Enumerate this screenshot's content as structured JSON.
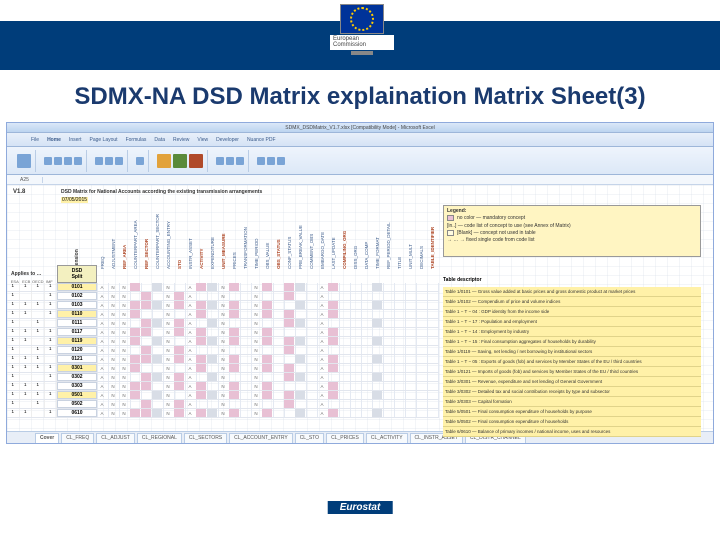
{
  "header": {
    "logo_text": "European\nCommission"
  },
  "title": "SDMX-NA DSD Matrix explaination Matrix Sheet(3)",
  "excel": {
    "window_title": "SDMX_DSDMatrix_V1.7.xlsx [Compatibility Mode] - Microsoft Excel",
    "tabs": [
      "File",
      "Home",
      "Insert",
      "Page Layout",
      "Formulas",
      "Data",
      "Review",
      "View",
      "Developer",
      "Nuance PDF"
    ],
    "name_box": "A25",
    "version": "V1.8",
    "matrix_title": "DSD Matrix for National Accounts according the existing transmission arrangements",
    "matrix_date": "07/05/2015",
    "applies_label": "Applies to …",
    "split_label_top": "DSD",
    "split_label_bot": "Split",
    "dim_label": "Dimension",
    "code_header": "code",
    "domain_cols": [
      "ESA",
      "ECB",
      "OECD",
      "IMF"
    ],
    "rotated_headers": [
      {
        "t": "FREQ",
        "hl": false
      },
      {
        "t": "ADJUSTMENT",
        "hl": false
      },
      {
        "t": "REF_AREA",
        "hl": true
      },
      {
        "t": "COUNTERPART_AREA",
        "hl": false
      },
      {
        "t": "REF_SECTOR",
        "hl": true
      },
      {
        "t": "COUNTERPART_SECTOR",
        "hl": false
      },
      {
        "t": "ACCOUNTING_ENTRY",
        "hl": false
      },
      {
        "t": "STO",
        "hl": true
      },
      {
        "t": "INSTR_ASSET",
        "hl": false
      },
      {
        "t": "ACTIVITY",
        "hl": true
      },
      {
        "t": "EXPENDITURE",
        "hl": false
      },
      {
        "t": "UNIT_MEASURE",
        "hl": true
      },
      {
        "t": "PRICES",
        "hl": false
      },
      {
        "t": "TRANSFORMATION",
        "hl": false
      },
      {
        "t": "TIME_PERIOD",
        "hl": false
      },
      {
        "t": "OBS_VALUE",
        "hl": false
      },
      {
        "t": "OBS_STATUS",
        "hl": true
      },
      {
        "t": "CONF_STATUS",
        "hl": false
      },
      {
        "t": "PRE_BREAK_VALUE",
        "hl": false
      },
      {
        "t": "COMMENT_OBS",
        "hl": false
      },
      {
        "t": "EMBARGO_DATE",
        "hl": false
      },
      {
        "t": "LAST_UPDATE",
        "hl": false
      },
      {
        "t": "COMPILING_ORG",
        "hl": true
      },
      {
        "t": "DISS_ORG",
        "hl": false
      },
      {
        "t": "DATA_COMP",
        "hl": false
      },
      {
        "t": "TIME_FORMAT",
        "hl": false
      },
      {
        "t": "REF_PERIOD_DETAIL",
        "hl": false
      },
      {
        "t": "TITLE",
        "hl": false
      },
      {
        "t": "UNIT_MULT",
        "hl": false
      },
      {
        "t": "DECIMALS",
        "hl": false
      },
      {
        "t": "TABLE_IDENTIFIER",
        "hl": true
      }
    ],
    "rows": [
      {
        "app": [
          "1",
          "1",
          "1",
          "1"
        ],
        "code": "0101",
        "desc": "Table 1/0101 — Gross value added at basic prices and gross domestic product at market prices"
      },
      {
        "app": [
          "1",
          "",
          "",
          "1"
        ],
        "code": "0102",
        "desc": "Table 1/0102 — Compendium of price and volume indices"
      },
      {
        "app": [
          "1",
          "1",
          "1",
          "1"
        ],
        "code": "0103",
        "desc": "Table 1 − T − 04 : GDP identity from the income side"
      },
      {
        "app": [
          "1",
          "1",
          "",
          "1"
        ],
        "code": "0110",
        "desc": "Table 1 − T − 17 : Population and employment"
      },
      {
        "app": [
          "1",
          "",
          "1",
          ""
        ],
        "code": "0111",
        "desc": "Table 1 − T − 14 : Employment by industry"
      },
      {
        "app": [
          "1",
          "1",
          "1",
          "1"
        ],
        "code": "0117",
        "desc": "Table 1 − T − 15 : Final consumption aggregates of households by durability"
      },
      {
        "app": [
          "1",
          "1",
          "",
          "1"
        ],
        "code": "0119",
        "desc": "Table 1/0119 — Saving, net lending / net borrowing by institutional sectors"
      },
      {
        "app": [
          "1",
          "",
          "1",
          "1"
        ],
        "code": "0120",
        "desc": "Table 1 − T − 05 : Exports of goods (fob) and services by Member States of the EU / third countries"
      },
      {
        "app": [
          "1",
          "1",
          "1",
          ""
        ],
        "code": "0121",
        "desc": "Table 1/0121 — Imports of goods (fob) and services by Member States of the EU / third countries"
      },
      {
        "app": [
          "1",
          "1",
          "1",
          "1"
        ],
        "code": "0301",
        "desc": "Table 3/0301 — Revenue, expenditure and net lending of General Government"
      },
      {
        "app": [
          "1",
          "",
          "",
          "1"
        ],
        "code": "0302",
        "desc": "Table 3/0302 — Detailed tax and social contribution receipts by type and subsector"
      },
      {
        "app": [
          "1",
          "1",
          "1",
          ""
        ],
        "code": "0303",
        "desc": "Table 3/0303 — Capital formation"
      },
      {
        "app": [
          "1",
          "1",
          "1",
          "1"
        ],
        "code": "0501",
        "desc": "Table 5/0501 — Final consumption expenditure of households by purpose"
      },
      {
        "app": [
          "1",
          "",
          "1",
          ""
        ],
        "code": "0502",
        "desc": "Table 5/0502 — Final consumption expenditure of households"
      },
      {
        "app": [
          "1",
          "1",
          "",
          "1"
        ],
        "code": "0610",
        "desc": "Table 6/0610 — Balance of primary incomes / national income, uses and resources"
      }
    ],
    "marks": {
      "pink_cols": [
        3,
        4,
        7,
        9,
        12,
        15,
        17,
        21
      ],
      "grey_cols": [
        5,
        10,
        18,
        25
      ],
      "text_cols": [
        0,
        1,
        2,
        6,
        8,
        11,
        14,
        20
      ]
    },
    "legend_title": "Legend:",
    "legend_items": [
      "no color — mandatory concept",
      "[in..] — code list of concept to use (see Annex of Matrix)",
      "[Blank] — concept not used in table",
      "→ … → fixed single code from code list"
    ],
    "table_descr_label": "Table descriptor",
    "sheet_tabs": [
      "Cover",
      "CL_FREQ",
      "CL_ADJUST",
      "CL_REGIONAL",
      "CL_SECTORS",
      "CL_ACCOUNT_ENTRY",
      "CL_STO",
      "CL_PRICES",
      "CL_ACTIVITY",
      "CL_INSTR_ASSET",
      "CL_DISTR_CHANNEL"
    ],
    "active_sheet": 0
  },
  "footer": "Eurostat",
  "colors": {
    "navy": "#003d7a",
    "title": "#1a3a6e",
    "highlight": "#fff1a8",
    "pink": "#e8c0d4",
    "legend_bg": "#fff5c2"
  }
}
